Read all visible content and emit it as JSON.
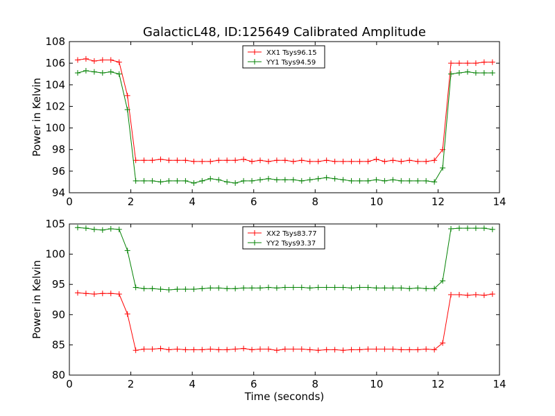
{
  "chart_data": [
    {
      "type": "line",
      "title": "GalacticL48, ID:125649 Calibrated Amplitude",
      "xlabel": "",
      "ylabel": "Power in Kelvin",
      "xlim": [
        0,
        14
      ],
      "ylim": [
        94,
        108
      ],
      "xticks": [
        "0",
        "2",
        "4",
        "6",
        "8",
        "10",
        "12",
        "14"
      ],
      "yticks": [
        "94",
        "96",
        "98",
        "100",
        "102",
        "104",
        "106",
        "108"
      ],
      "grid": false,
      "legend": "top-center",
      "x": [
        0.27,
        0.54,
        0.81,
        1.08,
        1.35,
        1.62,
        1.89,
        2.16,
        2.43,
        2.7,
        2.97,
        3.24,
        3.51,
        3.78,
        4.05,
        4.32,
        4.59,
        4.86,
        5.13,
        5.4,
        5.67,
        5.94,
        6.21,
        6.48,
        6.75,
        7.02,
        7.29,
        7.56,
        7.83,
        8.1,
        8.37,
        8.64,
        8.91,
        9.18,
        9.45,
        9.72,
        9.99,
        10.26,
        10.53,
        10.8,
        11.07,
        11.34,
        11.61,
        11.88,
        12.15,
        12.42,
        12.69,
        12.96,
        13.23,
        13.5,
        13.77
      ],
      "series": [
        {
          "name": "XX1 Tsys96.15",
          "color": "#ff0000",
          "values": [
            106.3,
            106.4,
            106.2,
            106.3,
            106.3,
            106.1,
            103.0,
            97.0,
            97.0,
            97.0,
            97.1,
            97.0,
            97.0,
            97.0,
            96.9,
            96.9,
            96.9,
            97.0,
            97.0,
            97.0,
            97.1,
            96.9,
            97.0,
            96.9,
            97.0,
            97.0,
            96.9,
            97.0,
            96.9,
            96.9,
            97.0,
            96.9,
            96.9,
            96.9,
            96.9,
            96.9,
            97.1,
            96.9,
            97.0,
            96.9,
            97.0,
            96.9,
            96.9,
            97.0,
            98.0,
            106.0,
            106.0,
            106.0,
            106.0,
            106.1,
            106.1
          ]
        },
        {
          "name": "YY1 Tsys94.59",
          "color": "#008000",
          "values": [
            105.1,
            105.3,
            105.2,
            105.1,
            105.2,
            105.0,
            101.7,
            95.1,
            95.1,
            95.1,
            95.0,
            95.1,
            95.1,
            95.1,
            94.9,
            95.1,
            95.3,
            95.2,
            95.0,
            94.9,
            95.1,
            95.1,
            95.2,
            95.3,
            95.2,
            95.2,
            95.2,
            95.1,
            95.2,
            95.3,
            95.4,
            95.3,
            95.2,
            95.1,
            95.1,
            95.1,
            95.2,
            95.1,
            95.2,
            95.1,
            95.1,
            95.1,
            95.1,
            95.0,
            96.3,
            105.0,
            105.1,
            105.2,
            105.1,
            105.1,
            105.1
          ]
        }
      ]
    },
    {
      "type": "line",
      "title": "",
      "xlabel": "Time (seconds)",
      "ylabel": "Power in Kelvin",
      "xlim": [
        0,
        14
      ],
      "ylim": [
        80,
        105
      ],
      "xticks": [
        "0",
        "2",
        "4",
        "6",
        "8",
        "10",
        "12",
        "14"
      ],
      "yticks": [
        "80",
        "85",
        "90",
        "95",
        "100",
        "105"
      ],
      "grid": false,
      "legend": "top-center",
      "x": [
        0.27,
        0.54,
        0.81,
        1.08,
        1.35,
        1.62,
        1.89,
        2.16,
        2.43,
        2.7,
        2.97,
        3.24,
        3.51,
        3.78,
        4.05,
        4.32,
        4.59,
        4.86,
        5.13,
        5.4,
        5.67,
        5.94,
        6.21,
        6.48,
        6.75,
        7.02,
        7.29,
        7.56,
        7.83,
        8.1,
        8.37,
        8.64,
        8.91,
        9.18,
        9.45,
        9.72,
        9.99,
        10.26,
        10.53,
        10.8,
        11.07,
        11.34,
        11.61,
        11.88,
        12.15,
        12.42,
        12.69,
        12.96,
        13.23,
        13.5,
        13.77
      ],
      "series": [
        {
          "name": "XX2 Tsys83.77",
          "color": "#ff0000",
          "values": [
            93.6,
            93.5,
            93.4,
            93.5,
            93.5,
            93.4,
            90.1,
            84.1,
            84.3,
            84.3,
            84.4,
            84.2,
            84.3,
            84.2,
            84.2,
            84.2,
            84.3,
            84.2,
            84.2,
            84.3,
            84.4,
            84.2,
            84.3,
            84.3,
            84.1,
            84.3,
            84.3,
            84.3,
            84.2,
            84.1,
            84.2,
            84.2,
            84.1,
            84.2,
            84.2,
            84.3,
            84.3,
            84.3,
            84.3,
            84.2,
            84.2,
            84.2,
            84.3,
            84.2,
            85.3,
            93.3,
            93.3,
            93.2,
            93.3,
            93.2,
            93.4
          ]
        },
        {
          "name": "YY2 Tsys93.37",
          "color": "#008000",
          "values": [
            104.4,
            104.3,
            104.1,
            104.0,
            104.2,
            104.1,
            100.6,
            94.5,
            94.3,
            94.3,
            94.2,
            94.1,
            94.2,
            94.2,
            94.2,
            94.3,
            94.4,
            94.4,
            94.3,
            94.3,
            94.4,
            94.4,
            94.4,
            94.5,
            94.4,
            94.5,
            94.5,
            94.5,
            94.4,
            94.5,
            94.5,
            94.5,
            94.5,
            94.4,
            94.5,
            94.5,
            94.4,
            94.4,
            94.4,
            94.4,
            94.3,
            94.4,
            94.3,
            94.3,
            95.6,
            104.2,
            104.3,
            104.3,
            104.3,
            104.3,
            104.1
          ]
        }
      ]
    }
  ]
}
